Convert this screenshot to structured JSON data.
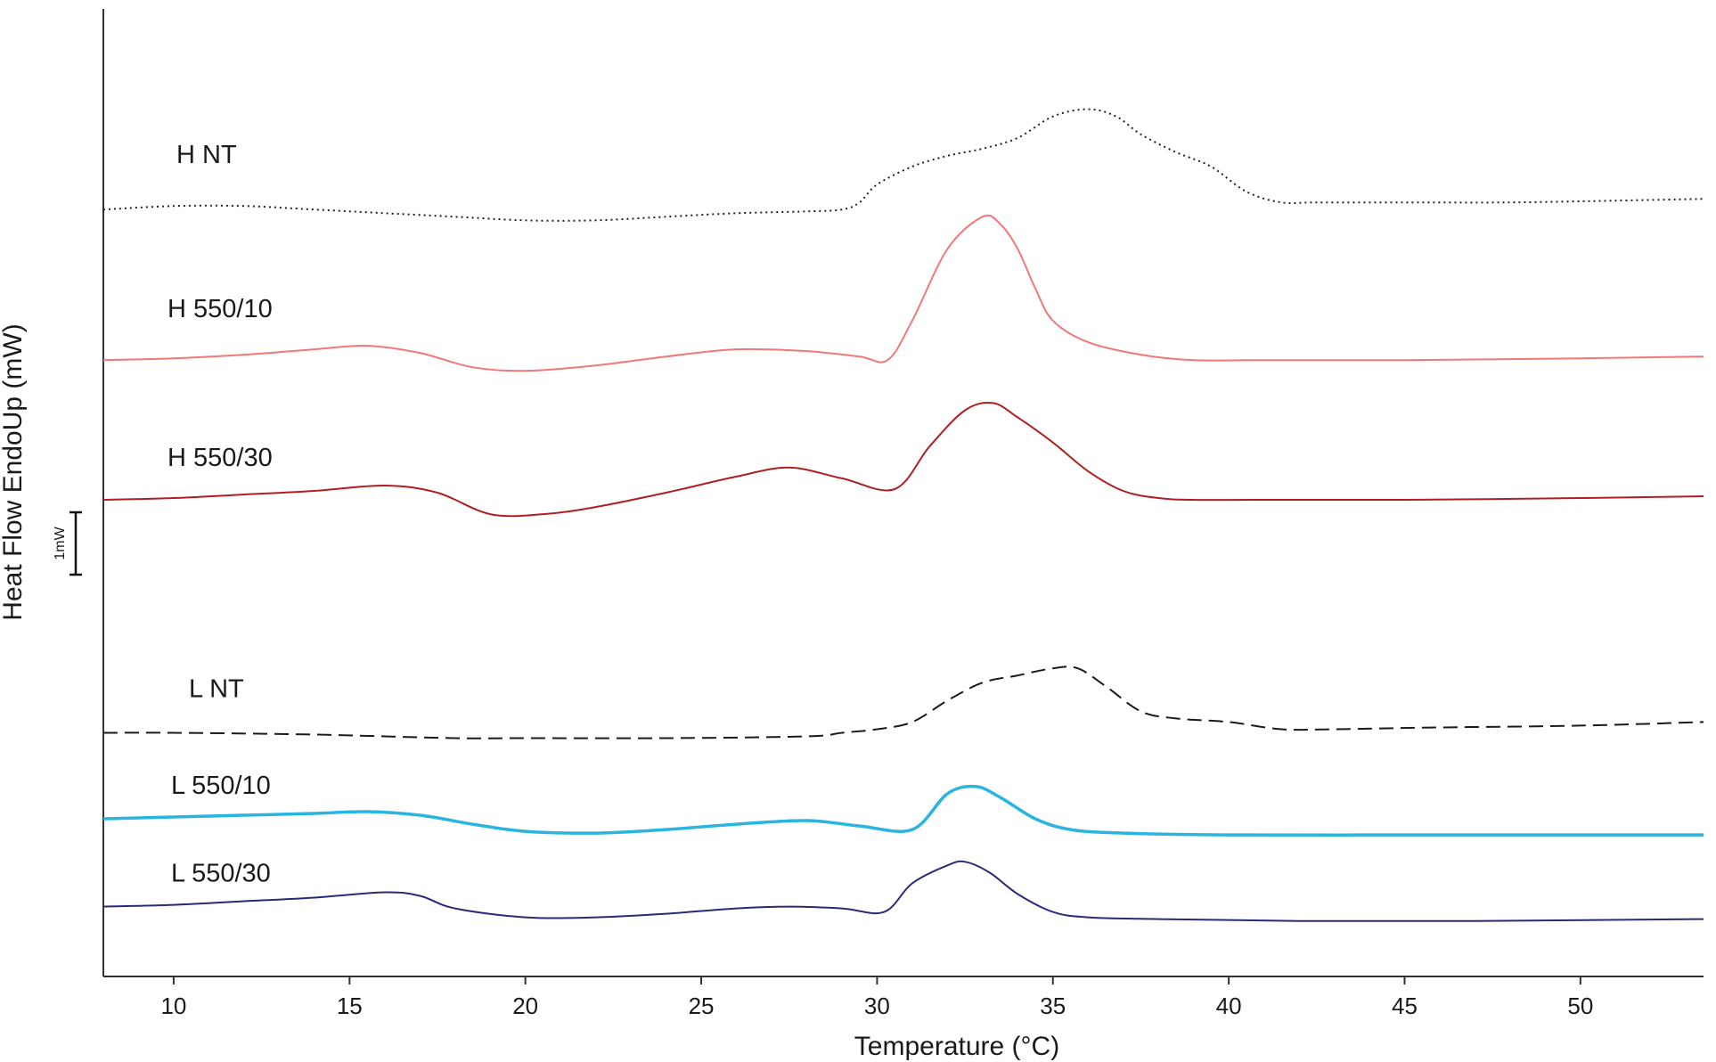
{
  "chart_data": {
    "type": "line",
    "title": "",
    "xlabel": "Temperature (°C)",
    "ylabel": "Heat Flow EndoUp (mW)",
    "xlim": [
      8,
      53.5
    ],
    "ylim": [
      0,
      27
    ],
    "grid": false,
    "legend": "none",
    "x_ticks": [
      10,
      15,
      20,
      25,
      30,
      35,
      40,
      45,
      50
    ],
    "y_ticks": [],
    "scale_bar": {
      "label": "1mW",
      "value": 1
    },
    "series": [
      {
        "name": "H NT",
        "color": "#222222",
        "dash": "dotted",
        "width": 2,
        "x": [
          8,
          10,
          12,
          14,
          16,
          18,
          20,
          22,
          24,
          26,
          28,
          29,
          29.5,
          30,
          31,
          32,
          33,
          34,
          35,
          36,
          36.8,
          37.5,
          38.5,
          39.5,
          40.5,
          41.5,
          42.5,
          45,
          48,
          51,
          53.5
        ],
        "y": [
          21.4,
          21.5,
          21.5,
          21.4,
          21.3,
          21.2,
          21.1,
          21.1,
          21.2,
          21.3,
          21.35,
          21.4,
          21.6,
          22.1,
          22.6,
          22.9,
          23.1,
          23.4,
          24.0,
          24.2,
          24.0,
          23.5,
          23.0,
          22.6,
          21.9,
          21.6,
          21.6,
          21.6,
          21.6,
          21.65,
          21.7
        ],
        "label": "H NT"
      },
      {
        "name": "H 550/10",
        "color": "#f07878",
        "dash": "solid",
        "width": 2,
        "x": [
          8,
          10,
          12,
          14,
          15.5,
          17,
          18.5,
          20,
          22,
          24,
          26,
          28,
          29.5,
          30.3,
          31,
          32,
          33,
          33.5,
          34,
          34.5,
          35,
          36,
          37.5,
          39,
          41,
          45,
          50,
          53.5
        ],
        "y": [
          17.2,
          17.25,
          17.35,
          17.5,
          17.6,
          17.4,
          17.0,
          16.9,
          17.05,
          17.3,
          17.5,
          17.45,
          17.3,
          17.2,
          18.3,
          20.3,
          21.2,
          21.0,
          20.3,
          19.2,
          18.3,
          17.7,
          17.35,
          17.2,
          17.2,
          17.2,
          17.25,
          17.3
        ],
        "label": "H 550/10"
      },
      {
        "name": "H 550/30",
        "color": "#b01e22",
        "dash": "solid",
        "width": 2,
        "x": [
          8,
          10,
          12,
          14,
          16,
          17.5,
          19,
          20.5,
          22,
          24,
          26,
          27.5,
          29,
          30.5,
          31.5,
          32.5,
          33.3,
          34,
          35,
          36,
          37,
          38,
          39,
          41,
          45,
          50,
          53.5
        ],
        "y": [
          13.3,
          13.35,
          13.45,
          13.55,
          13.7,
          13.5,
          12.9,
          12.9,
          13.1,
          13.5,
          13.95,
          14.2,
          13.9,
          13.6,
          14.8,
          15.8,
          16.0,
          15.6,
          14.9,
          14.1,
          13.55,
          13.35,
          13.3,
          13.3,
          13.3,
          13.35,
          13.4
        ],
        "label": "H 550/30"
      },
      {
        "name": "L NT",
        "color": "#1a1a1a",
        "dash": "dashed",
        "width": 2,
        "x": [
          8,
          10,
          14,
          18,
          20,
          24,
          28,
          29,
          30,
          31,
          32,
          33,
          34,
          35,
          35.7,
          36.5,
          37.5,
          38.5,
          40,
          41.5,
          43,
          46,
          50,
          53.5
        ],
        "y": [
          6.8,
          6.8,
          6.75,
          6.65,
          6.65,
          6.65,
          6.7,
          6.8,
          6.9,
          7.1,
          7.7,
          8.2,
          8.4,
          8.6,
          8.6,
          8.1,
          7.4,
          7.2,
          7.1,
          6.9,
          6.9,
          6.95,
          7.0,
          7.1
        ],
        "label": "L NT"
      },
      {
        "name": "L 550/10",
        "color": "#2ab5e0",
        "dash": "solid",
        "width": 3.5,
        "x": [
          8,
          10,
          12,
          14,
          15.5,
          17,
          18.5,
          20,
          22,
          24,
          26,
          28,
          29.5,
          31,
          32,
          32.8,
          33.5,
          34.5,
          35.5,
          37,
          40,
          45,
          50,
          53.5
        ],
        "y": [
          4.4,
          4.45,
          4.5,
          4.55,
          4.6,
          4.5,
          4.25,
          4.05,
          4.0,
          4.1,
          4.25,
          4.35,
          4.2,
          4.1,
          5.1,
          5.3,
          5.0,
          4.4,
          4.1,
          4.0,
          3.95,
          3.95,
          3.95,
          3.95
        ],
        "label": "L 550/10"
      },
      {
        "name": "L 550/30",
        "color": "#2b2a7a",
        "dash": "solid",
        "width": 2,
        "x": [
          8,
          10,
          12,
          14,
          16,
          17,
          18,
          20,
          22,
          24,
          26,
          27.5,
          29,
          30.2,
          31,
          32,
          32.5,
          33.2,
          34,
          35,
          36,
          38,
          42,
          47,
          53.5
        ],
        "y": [
          1.95,
          2.0,
          2.1,
          2.2,
          2.35,
          2.25,
          1.9,
          1.65,
          1.65,
          1.75,
          1.9,
          1.95,
          1.9,
          1.8,
          2.6,
          3.1,
          3.2,
          2.9,
          2.3,
          1.8,
          1.65,
          1.6,
          1.55,
          1.55,
          1.6
        ],
        "label": "L 550/30"
      }
    ]
  }
}
